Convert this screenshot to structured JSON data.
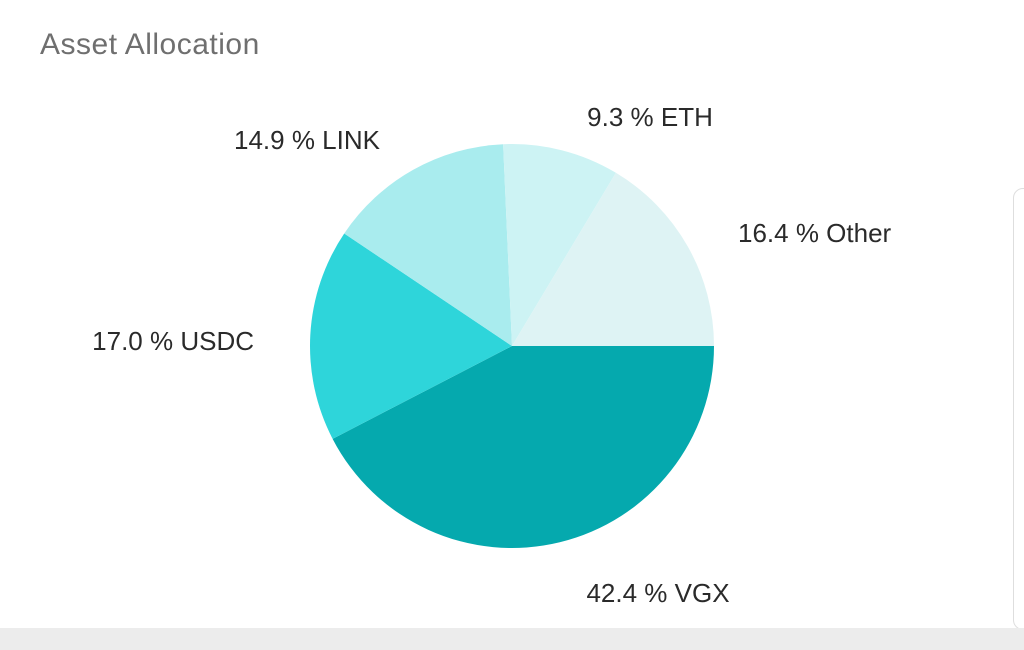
{
  "card": {
    "title": "Asset Allocation"
  },
  "chart_data": {
    "type": "pie",
    "title": "Asset Allocation",
    "slices": [
      {
        "label": "VGX",
        "value": 42.4,
        "display": "42.4 % VGX",
        "color": "#05a9ae"
      },
      {
        "label": "USDC",
        "value": 17.0,
        "display": "17.0 % USDC",
        "color": "#2ed5da"
      },
      {
        "label": "LINK",
        "value": 14.9,
        "display": "14.9 % LINK",
        "color": "#a9ecee"
      },
      {
        "label": "ETH",
        "value": 9.3,
        "display": "9.3 % ETH",
        "color": "#cdf3f4"
      },
      {
        "label": "Other",
        "value": 16.4,
        "display": "16.4 % Other",
        "color": "#def3f4"
      }
    ],
    "start_direction": "3 o'clock",
    "order": "clockwise"
  }
}
